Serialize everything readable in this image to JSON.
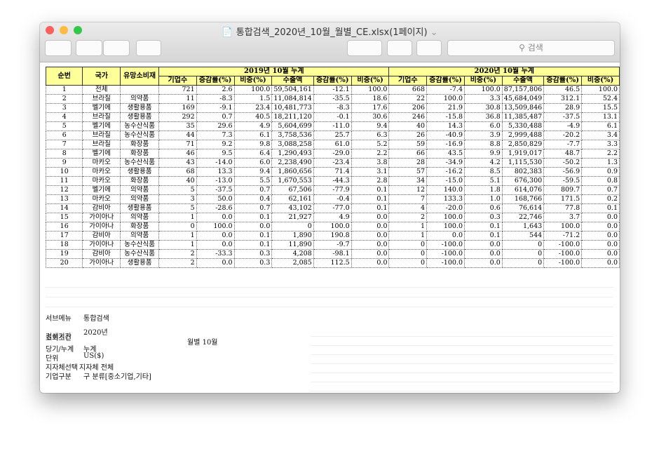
{
  "window": {
    "title": "통합검색_2020년_10월_월별_CE.xlsx(1페이지)",
    "search_placeholder": "검색"
  },
  "table": {
    "fixed_headers": [
      "순번",
      "국가",
      "유망소비재"
    ],
    "group_headers": [
      "2019년 10월 누계",
      "2020년 10월 누계"
    ],
    "sub_headers": [
      "기업수",
      "증감률(%)",
      "비중(%)",
      "수출액",
      "증감률(%)",
      "비중(%)",
      "기업수",
      "증감률(%)",
      "비중(%)",
      "수출액",
      "증감률(%)",
      "비중(%)"
    ],
    "rows": [
      [
        "1",
        "전체",
        "",
        "721",
        "2.6",
        "100.0",
        "59,504,161",
        "-12.1",
        "100.0",
        "668",
        "-7.4",
        "100.0",
        "87,157,806",
        "46.5",
        "100.0"
      ],
      [
        "2",
        "브라질",
        "의약품",
        "11",
        "-8.3",
        "1.5",
        "11,084,814",
        "-35.5",
        "18.6",
        "22",
        "100.0",
        "3.3",
        "45,684,049",
        "312.1",
        "52.4"
      ],
      [
        "3",
        "벨기에",
        "생활용품",
        "169",
        "-9.1",
        "23.4",
        "10,481,773",
        "-8.3",
        "17.6",
        "206",
        "21.9",
        "30.8",
        "13,509,846",
        "28.9",
        "15.5"
      ],
      [
        "4",
        "브라질",
        "생활용품",
        "292",
        "0.7",
        "40.5",
        "18,211,120",
        "-0.1",
        "30.6",
        "246",
        "-15.8",
        "36.8",
        "11,385,487",
        "-37.5",
        "13.1"
      ],
      [
        "5",
        "벨기에",
        "농수산식품",
        "35",
        "29.6",
        "4.9",
        "5,604,699",
        "-11.0",
        "9.4",
        "40",
        "14.3",
        "6.0",
        "5,330,488",
        "-4.9",
        "6.1"
      ],
      [
        "6",
        "브라질",
        "농수산식품",
        "44",
        "7.3",
        "6.1",
        "3,758,536",
        "25.7",
        "6.3",
        "26",
        "-40.9",
        "3.9",
        "2,999,488",
        "-20.2",
        "3.4"
      ],
      [
        "7",
        "브라질",
        "화장품",
        "71",
        "9.2",
        "9.8",
        "3,088,258",
        "61.0",
        "5.2",
        "59",
        "-16.9",
        "8.8",
        "2,850,829",
        "-7.7",
        "3.3"
      ],
      [
        "8",
        "벨기에",
        "화장품",
        "46",
        "9.5",
        "6.4",
        "1,290,493",
        "-29.0",
        "2.2",
        "66",
        "43.5",
        "9.9",
        "1,919,017",
        "48.7",
        "2.2"
      ],
      [
        "9",
        "마카오",
        "농수산식품",
        "43",
        "-14.0",
        "6.0",
        "2,238,490",
        "-23.4",
        "3.8",
        "28",
        "-34.9",
        "4.2",
        "1,115,530",
        "-50.2",
        "1.3"
      ],
      [
        "10",
        "마카오",
        "생활용품",
        "68",
        "13.3",
        "9.4",
        "1,860,656",
        "71.4",
        "3.1",
        "57",
        "-16.2",
        "8.5",
        "802,383",
        "-56.9",
        "0.9"
      ],
      [
        "11",
        "마카오",
        "화장품",
        "40",
        "-13.0",
        "5.5",
        "1,670,553",
        "-44.3",
        "2.8",
        "34",
        "-15.0",
        "5.1",
        "676,300",
        "-59.5",
        "0.8"
      ],
      [
        "12",
        "벨기에",
        "의약품",
        "5",
        "-37.5",
        "0.7",
        "67,506",
        "-77.9",
        "0.1",
        "12",
        "140.0",
        "1.8",
        "614,076",
        "809.7",
        "0.7"
      ],
      [
        "13",
        "마카오",
        "의약품",
        "3",
        "50.0",
        "0.4",
        "62,161",
        "-0.4",
        "0.1",
        "7",
        "133.3",
        "1.0",
        "168,766",
        "171.5",
        "0.2"
      ],
      [
        "14",
        "감비아",
        "생활용품",
        "5",
        "-28.6",
        "0.7",
        "43,102",
        "-77.0",
        "0.1",
        "4",
        "-20.0",
        "0.6",
        "76,614",
        "77.8",
        "0.1"
      ],
      [
        "15",
        "가이아나",
        "의약품",
        "1",
        "0.0",
        "0.1",
        "21,927",
        "4.9",
        "0.0",
        "2",
        "100.0",
        "0.3",
        "22,746",
        "3.7",
        "0.0"
      ],
      [
        "16",
        "가이아나",
        "화장품",
        "0",
        "100.0",
        "0.0",
        "0",
        "100.0",
        "0.0",
        "1",
        "100.0",
        "0.1",
        "1,643",
        "100.0",
        "0.0"
      ],
      [
        "17",
        "감비아",
        "의약품",
        "1",
        "0.0",
        "0.1",
        "1,890",
        "190.8",
        "0.0",
        "1",
        "0.0",
        "0.1",
        "544",
        "-71.2",
        "0.0"
      ],
      [
        "18",
        "가이아나",
        "농수산식품",
        "1",
        "0.0",
        "0.1",
        "11,890",
        "-9.7",
        "0.0",
        "0",
        "-100.0",
        "0.0",
        "0",
        "-100.0",
        "0.0"
      ],
      [
        "19",
        "감비아",
        "농수산식품",
        "2",
        "-33.3",
        "0.3",
        "4,208",
        "-98.1",
        "0.0",
        "0",
        "-100.0",
        "0.0",
        "0",
        "-100.0",
        "0.0"
      ],
      [
        "20",
        "가이아나",
        "생활용품",
        "2",
        "0.0",
        "0.3",
        "2,085",
        "112.5",
        "0.0",
        "0",
        "-100.0",
        "0.0",
        "0",
        "-100.0",
        "0.0"
      ]
    ]
  },
  "conditions": {
    "heading": "조회조건",
    "items": [
      {
        "label": "서브메뉴",
        "value": "통합검색"
      },
      {
        "label": "검색기간",
        "value": "2020년",
        "extra": "월별 10월"
      },
      {
        "label": "당기/누계",
        "value": "누계"
      },
      {
        "label": "단위",
        "value": "US($)"
      },
      {
        "label": "지자체선택",
        "value": "지자체 전체"
      },
      {
        "label": "기업구분",
        "value": "구 분류[중소기업,기타]"
      }
    ]
  }
}
